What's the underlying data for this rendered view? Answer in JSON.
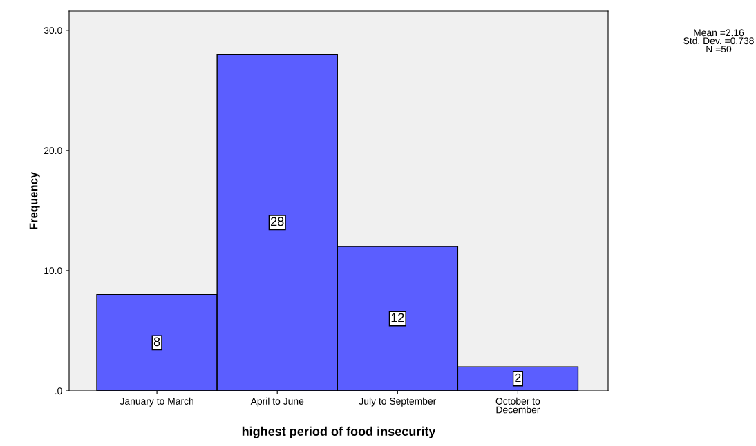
{
  "chart_data": {
    "type": "bar",
    "xlabel": "highest period of food insecurity",
    "ylabel": "Frequency",
    "categories": [
      "January to March",
      "April to June",
      "July to September",
      "October to\nDecember"
    ],
    "values": [
      8,
      28,
      12,
      2
    ],
    "color": "#5b5eff",
    "data_labels": true,
    "grid": false,
    "legend": false,
    "ylim": [
      0,
      31.6
    ],
    "yticks": [
      {
        "value": 0,
        "label": ".0"
      },
      {
        "value": 10,
        "label": "10.0"
      },
      {
        "value": 20,
        "label": "20.0"
      },
      {
        "value": 30,
        "label": "30.0"
      }
    ],
    "annotations": [
      "Mean =2.16",
      "Std. Dev. =0.738",
      "N =50"
    ]
  }
}
